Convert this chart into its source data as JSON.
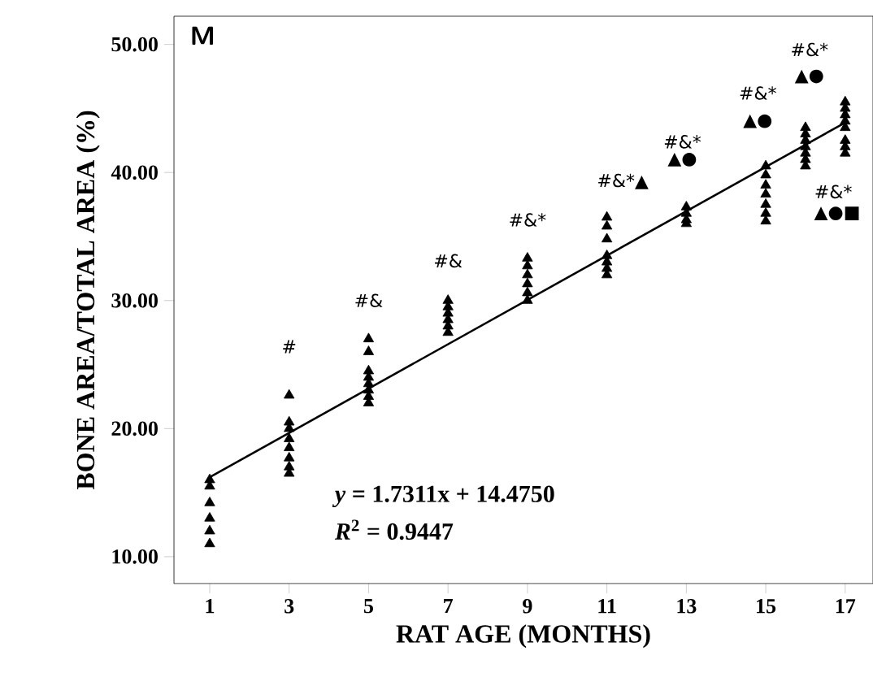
{
  "chart_data": {
    "type": "scatter",
    "xlabel": "RAT AGE (MONTHS)",
    "ylabel": "BONE AREA/TOTAL AREA (%)",
    "xlim": [
      0.1,
      17.7
    ],
    "ylim": [
      7.9,
      52.2
    ],
    "xticks": [
      1,
      3,
      5,
      7,
      9,
      11,
      13,
      15,
      17
    ],
    "yticks": [
      {
        "value": 10,
        "label": "10.00"
      },
      {
        "value": 20,
        "label": "20.00"
      },
      {
        "value": 30,
        "label": "30.00"
      },
      {
        "value": 40,
        "label": "40.00"
      },
      {
        "value": 50,
        "label": "50.00"
      }
    ],
    "series": [
      {
        "color": "#000000",
        "marker": "triangle",
        "x": [
          1,
          1,
          1,
          1,
          1,
          1,
          3,
          3,
          3,
          3,
          3,
          3,
          3,
          3,
          5,
          5,
          5,
          5,
          5,
          5,
          5,
          5,
          7,
          7,
          7,
          7,
          7,
          7,
          9,
          9,
          9,
          9,
          9,
          9,
          11,
          11,
          11,
          11,
          11,
          11,
          11,
          13,
          13,
          13,
          13,
          15,
          15,
          15,
          15,
          15,
          15,
          15,
          16,
          16,
          16,
          16,
          16,
          16,
          16,
          17,
          17,
          17,
          17,
          17,
          17,
          17,
          17
        ],
        "values": [
          16.0,
          15.5,
          14.2,
          13.0,
          12.0,
          11.0,
          22.6,
          20.5,
          20.0,
          19.2,
          18.5,
          17.7,
          17.0,
          16.5,
          27.0,
          26.0,
          24.5,
          24.0,
          23.5,
          23.0,
          22.5,
          22.0,
          30.0,
          29.5,
          29.0,
          28.5,
          28.0,
          27.5,
          33.3,
          32.7,
          32.0,
          31.3,
          30.6,
          30.0,
          36.5,
          35.8,
          34.8,
          33.5,
          33.0,
          32.5,
          32.0,
          37.3,
          36.8,
          36.3,
          36.0,
          40.5,
          39.8,
          39.0,
          38.3,
          37.5,
          36.8,
          36.2,
          43.5,
          43.0,
          42.5,
          42.0,
          41.5,
          41.0,
          40.5,
          45.5,
          45.0,
          44.5,
          44.0,
          43.5,
          42.5,
          42.0,
          41.5
        ]
      },
      {
        "type": "line",
        "color": "#000000",
        "x": [
          1,
          17
        ],
        "values": [
          16.2,
          43.9
        ]
      }
    ],
    "annotations": [
      "M",
      "*y* = 1.7311x + 14.4750",
      "*R*$^{2}$ = 0.9447",
      "#",
      "#&",
      "#&",
      "#&*",
      "#&*▲",
      "#&*",
      "▲●",
      "#&*",
      "▲●",
      "#&*",
      "▲●",
      "#&*",
      "▲●■"
    ]
  }
}
